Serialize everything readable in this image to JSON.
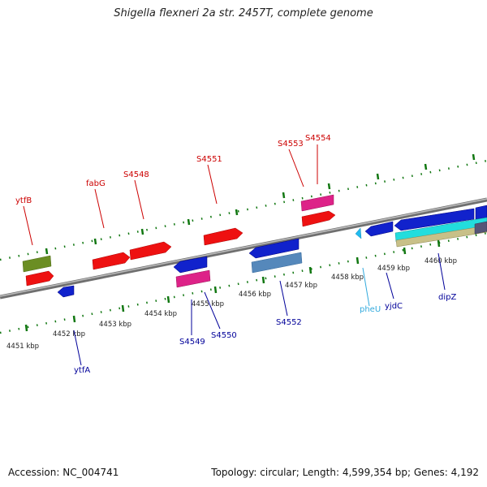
{
  "title": "Shigella flexneri 2a str. 2457T, complete genome",
  "footer": {
    "accession_label": "Accession:",
    "accession": "NC_004741",
    "topology_label": "Topology:",
    "topology": "circular",
    "length_label": "Length:",
    "length": "4,599,354 bp",
    "genes_label": "Genes:",
    "genes": "4,192"
  },
  "axis_ticks": [
    "4451 kbp",
    "4452 kbp",
    "4453 kbp",
    "4454 kbp",
    "4455 kbp",
    "4456 kbp",
    "4457 kbp",
    "4458 kbp",
    "4459 kbp",
    "4460 kbp"
  ],
  "genes_top": [
    {
      "name": "ytfB",
      "color": "#cc0000"
    },
    {
      "name": "fabG",
      "color": "#cc0000"
    },
    {
      "name": "S4548",
      "color": "#cc0000"
    },
    {
      "name": "S4551",
      "color": "#cc0000"
    },
    {
      "name": "S4553",
      "color": "#cc0000"
    },
    {
      "name": "S4554",
      "color": "#cc0000"
    }
  ],
  "genes_bottom": [
    {
      "name": "ytfA",
      "color": "#000099"
    },
    {
      "name": "S4549",
      "color": "#000099"
    },
    {
      "name": "S4550",
      "color": "#000099"
    },
    {
      "name": "S4552",
      "color": "#000099"
    },
    {
      "name": "pheU",
      "color": "#33aadd"
    },
    {
      "name": "yjdC",
      "color": "#000099"
    },
    {
      "name": "dipZ",
      "color": "#000099"
    }
  ],
  "colors": {
    "forward_gene": "#ee1111",
    "pink_gene": "#dd2288",
    "reverse_gene": "#1122cc",
    "steel_gene": "#5588bb",
    "olive_gene": "#6b8e23",
    "cyan_gene": "#22dddd",
    "tan_gene": "#c8c088",
    "backbone": "#888888",
    "tick_green": "#117711"
  }
}
